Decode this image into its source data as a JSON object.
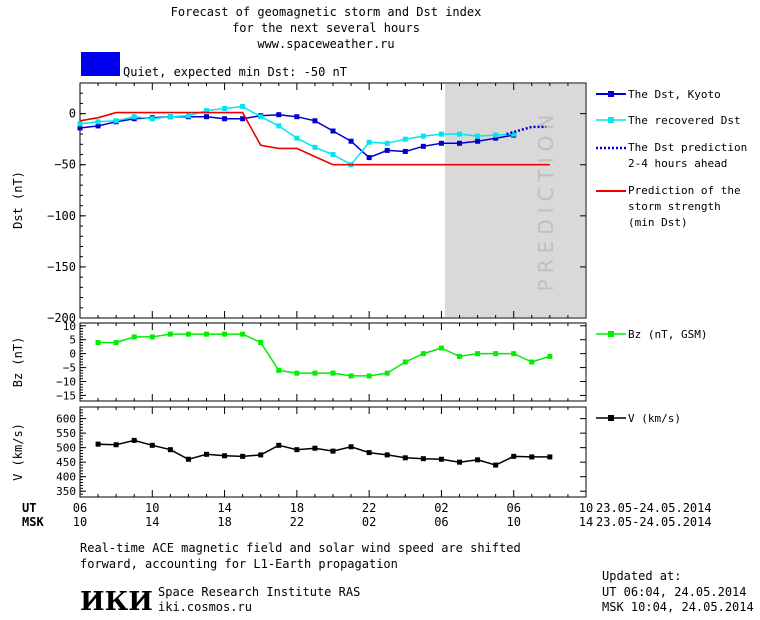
{
  "header": {
    "title_line1": "Forecast of geomagnetic storm and Dst index",
    "title_line2": "for the next several hours",
    "site": "www.spaceweather.ru",
    "status": "Quiet, expected min Dst: -50 nT",
    "status_color": "#0000ee"
  },
  "legend": {
    "dst_kyoto": "The Dst, Kyoto",
    "dst_recovered": "The recovered Dst",
    "dst_prediction_1": "The Dst prediction",
    "dst_prediction_2": "2-4 hours ahead",
    "strength_1": "Prediction of the",
    "strength_2": "storm strength",
    "strength_3": "(min Dst)",
    "bz": "Bz (nT, GSM)",
    "v": "V (km/s)"
  },
  "prediction_band_label": "PREDICTION",
  "axis_rows": {
    "ut_label": "UT",
    "msk_label": "MSK",
    "ut_ticks": [
      "06",
      "10",
      "14",
      "18",
      "22",
      "02",
      "06",
      "10"
    ],
    "msk_ticks": [
      "10",
      "14",
      "18",
      "22",
      "02",
      "06",
      "10",
      "14"
    ],
    "date_range": "23.05-24.05.2014"
  },
  "footer": {
    "note_line1": "Real-time ACE magnetic field and solar wind speed are shifted",
    "note_line2": "forward, accounting for L1-Earth propagation",
    "logo": "ИКИ",
    "institute": "Space Research Institute RAS",
    "institute_site": "iki.cosmos.ru",
    "updated_label": "Updated at:",
    "updated_ut": "UT  06:04, 24.05.2014",
    "updated_msk": "MSK 10:04, 24.05.2014"
  },
  "chart_data": [
    {
      "type": "line",
      "ylabel": "Dst (nT)",
      "ylim": [
        -200,
        30
      ],
      "yticks": [
        0,
        -50,
        -100,
        -150,
        -200
      ],
      "xlim_hours_ut": [
        6,
        30
      ],
      "prediction_band_hours": [
        26.2,
        30
      ],
      "series": [
        {
          "name": "The Dst, Kyoto",
          "color": "#0000cc",
          "x": [
            6,
            7,
            8,
            9,
            10,
            11,
            12,
            13,
            14,
            15,
            16,
            17,
            18,
            19,
            20,
            21,
            22,
            23,
            24,
            25,
            26,
            27,
            28,
            29,
            30
          ],
          "values": [
            -14,
            -12,
            -8,
            -5,
            -4,
            -3,
            -3,
            -3,
            -5,
            -5,
            -2,
            -1,
            -3,
            -7,
            -17,
            -27,
            -43,
            -36,
            -37,
            -32,
            -29,
            -29,
            -27,
            -24,
            -21
          ]
        },
        {
          "name": "The recovered Dst",
          "color": "#00e5ee",
          "x": [
            6,
            7,
            8,
            9,
            10,
            11,
            12,
            13,
            14,
            15,
            16,
            17,
            18,
            19,
            20,
            21,
            22,
            23,
            24,
            25,
            26,
            27,
            28,
            29,
            30
          ],
          "values": [
            -10,
            -8,
            -7,
            -3,
            -5,
            -3,
            -2,
            3,
            5,
            7,
            -3,
            -12,
            -24,
            -33,
            -40,
            -50,
            -28,
            -29,
            -25,
            -22,
            -20,
            -20,
            -22,
            -21,
            -20
          ]
        },
        {
          "name": "The Dst prediction 2-4 hours ahead",
          "color": "#0000cc",
          "style": "dotted",
          "x": [
            29.6,
            31.0,
            31.8
          ],
          "values": [
            -20,
            -13,
            -13
          ]
        },
        {
          "name": "Prediction of the storm strength (min Dst)",
          "color": "#ee0000",
          "x": [
            6,
            7,
            8,
            9,
            10,
            11,
            12,
            13,
            14,
            15,
            16,
            17,
            18,
            19,
            20,
            21,
            22,
            23,
            24,
            25,
            26,
            27,
            28,
            29,
            30,
            31,
            32
          ],
          "values": [
            -7,
            -4,
            1,
            1,
            1,
            1,
            1,
            1,
            1,
            1,
            -31,
            -34,
            -34,
            -42,
            -50,
            -50,
            -50,
            -50,
            -50,
            -50,
            -50,
            -50,
            -50,
            -50,
            -50,
            -50,
            -50
          ]
        }
      ]
    },
    {
      "type": "line",
      "ylabel": "Bz (nT)",
      "ylim": [
        -17,
        11
      ],
      "yticks": [
        10,
        5,
        0,
        -5,
        -10,
        -15
      ],
      "series": [
        {
          "name": "Bz (nT, GSM)",
          "color": "#00ee00",
          "x": [
            7,
            8,
            9,
            10,
            11,
            12,
            13,
            14,
            15,
            16,
            17,
            18,
            19,
            20,
            21,
            22,
            23,
            24,
            25,
            26,
            27,
            28,
            29,
            30,
            31,
            32
          ],
          "values": [
            4,
            4,
            6,
            6,
            7,
            7,
            7,
            7,
            7,
            4,
            -6,
            -7,
            -7,
            -7,
            -8,
            -8,
            -7,
            -3,
            0,
            2,
            -1,
            0,
            0,
            0,
            -3,
            -1
          ]
        }
      ]
    },
    {
      "type": "line",
      "ylabel": "V (km/s)",
      "ylim": [
        330,
        640
      ],
      "yticks": [
        600,
        550,
        500,
        450,
        400,
        350
      ],
      "series": [
        {
          "name": "V (km/s)",
          "color": "#000000",
          "x": [
            7,
            8,
            9,
            10,
            11,
            12,
            13,
            14,
            15,
            16,
            17,
            18,
            19,
            20,
            21,
            22,
            23,
            24,
            25,
            26,
            27,
            28,
            29,
            30,
            31,
            32
          ],
          "values": [
            512,
            510,
            525,
            508,
            493,
            460,
            477,
            472,
            470,
            475,
            508,
            493,
            498,
            488,
            503,
            483,
            475,
            465,
            462,
            460,
            450,
            458,
            440,
            470,
            468,
            468
          ]
        }
      ]
    }
  ]
}
